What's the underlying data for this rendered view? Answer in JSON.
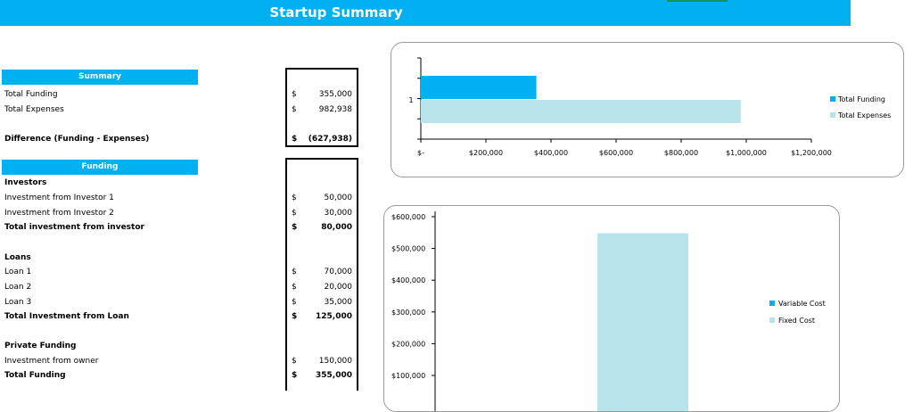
{
  "header": {
    "title": "Startup Summary"
  },
  "summary": {
    "header": "Summary",
    "rows": [
      {
        "label": "Total Funding",
        "currency": "$",
        "amount": "355,000"
      },
      {
        "label": "Total Expenses",
        "currency": "$",
        "amount": "982,938"
      },
      {
        "label": "Difference (Funding - Expenses)",
        "currency": "$",
        "amount": "(627,938)"
      }
    ]
  },
  "funding": {
    "header": "Funding",
    "investors_title": "Investors",
    "investors": [
      {
        "label": "Investment from Investor 1",
        "currency": "$",
        "amount": "50,000"
      },
      {
        "label": "Investment from Investor 2",
        "currency": "$",
        "amount": "30,000"
      },
      {
        "label": "Total investment from investor",
        "currency": "$",
        "amount": "80,000"
      }
    ],
    "loans_title": "Loans",
    "loans": [
      {
        "label": "Loan 1",
        "currency": "$",
        "amount": "70,000"
      },
      {
        "label": "Loan 2",
        "currency": "$",
        "amount": "20,000"
      },
      {
        "label": "Loan 3",
        "currency": "$",
        "amount": "35,000"
      },
      {
        "label": "Total Investment from Loan",
        "currency": "$",
        "amount": "125,000"
      }
    ],
    "private_title": "Private Funding",
    "private": [
      {
        "label": "Investment from owner",
        "currency": "$",
        "amount": "150,000"
      },
      {
        "label": "Total Funding",
        "currency": "$",
        "amount": "355,000"
      }
    ]
  },
  "chart_data": [
    {
      "type": "bar",
      "orientation": "horizontal",
      "categories": [
        "1"
      ],
      "series": [
        {
          "name": "Total Funding",
          "values": [
            355000
          ],
          "color": "#00b0f0"
        },
        {
          "name": "Total Expenses",
          "values": [
            982938
          ],
          "color": "#b7e4ea"
        }
      ],
      "xlim": [
        0,
        1200000
      ],
      "x_ticks": [
        "$-",
        "$200,000",
        "$400,000",
        "$600,000",
        "$800,000",
        "$1,000,000",
        "$1,200,000"
      ],
      "legend": "right",
      "grid": false
    },
    {
      "type": "bar",
      "stacked": true,
      "series": [
        {
          "name": "Variable Cost",
          "values": [
            0
          ],
          "color": "#00b0f0"
        },
        {
          "name": "Fixed Cost",
          "values": [
            548000
          ],
          "color": "#b7e4ea"
        }
      ],
      "ylim": [
        0,
        600000
      ],
      "y_ticks": [
        "$600,000",
        "$500,000",
        "$400,000",
        "$300,000",
        "$200,000",
        "$100,000"
      ],
      "legend": "right",
      "grid": false
    }
  ]
}
